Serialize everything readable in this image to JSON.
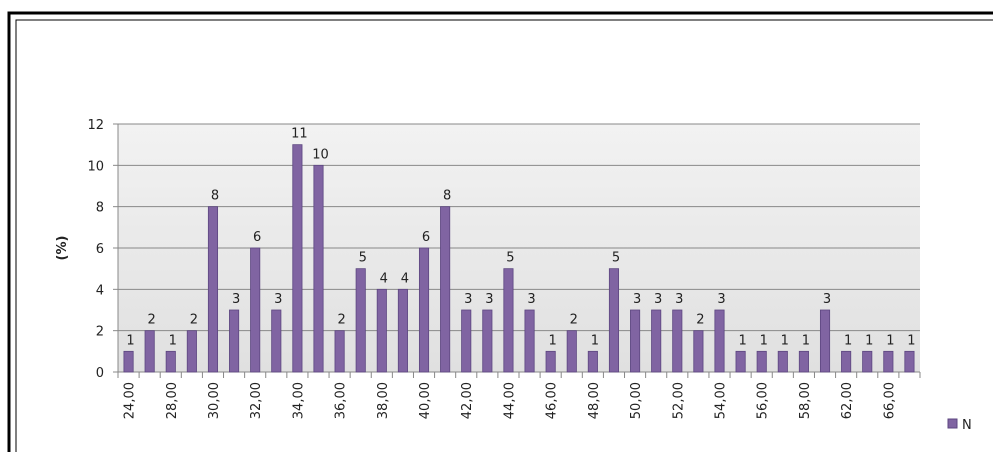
{
  "chart_data": {
    "type": "bar",
    "y_label": "(%)",
    "categories": [
      "24,00",
      null,
      "28,00",
      null,
      "30,00",
      null,
      "32,00",
      null,
      "34,00",
      null,
      "36,00",
      null,
      "38,00",
      null,
      "40,00",
      null,
      "42,00",
      null,
      "44,00",
      null,
      "46,00",
      null,
      "48,00",
      null,
      "50,00",
      null,
      "52,00",
      null,
      "54,00",
      null,
      "56,00",
      null,
      "58,00",
      null,
      "62,00",
      null,
      "66,00",
      null
    ],
    "series": [
      {
        "name": "N",
        "color": "#8064a2",
        "values": [
          1,
          2,
          1,
          2,
          8,
          3,
          6,
          3,
          11,
          10,
          2,
          5,
          4,
          4,
          6,
          8,
          3,
          3,
          5,
          3,
          1,
          2,
          1,
          5,
          3,
          3,
          3,
          2,
          3,
          1,
          1,
          1,
          1,
          3,
          1,
          1,
          1,
          1
        ]
      }
    ],
    "ylim": [
      0,
      12
    ],
    "yticks": [
      0,
      2,
      4,
      6,
      8,
      10,
      12
    ],
    "grid": true,
    "legend": "right"
  }
}
